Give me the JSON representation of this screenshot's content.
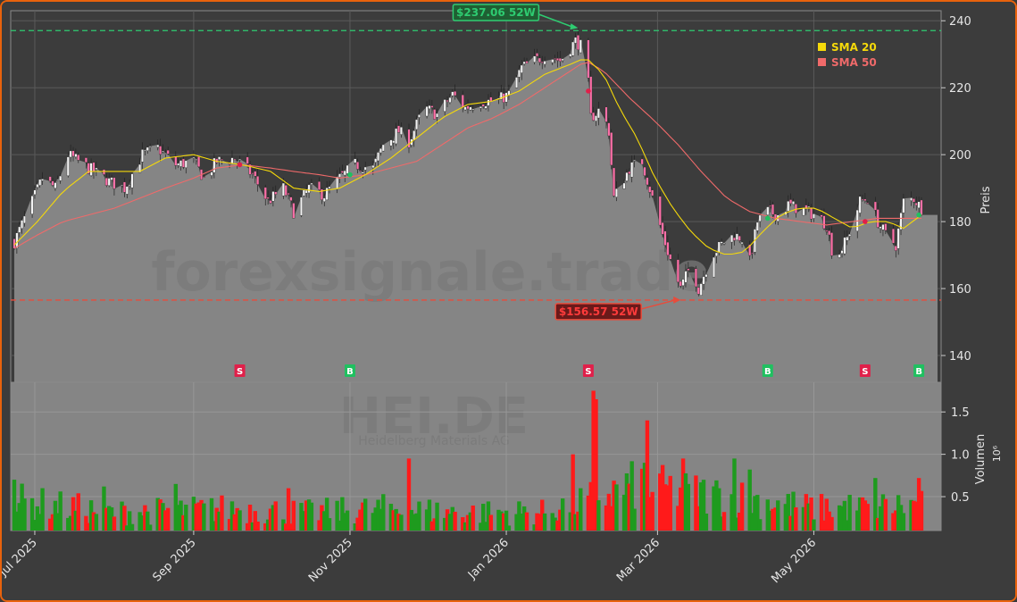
{
  "chart_data": {
    "type": "candlestick",
    "ticker": "HEI.DE",
    "subtitle": "Heidelberg Materials AG",
    "watermark": "forexsignale.trade",
    "x_labels": [
      "Jul 2025",
      "Sep 2025",
      "Nov 2025",
      "Jan 2026",
      "Mar 2026",
      "May 2026"
    ],
    "x_label_dates": [
      "2025-07-01",
      "2025-09-01",
      "2025-11-01",
      "2026-01-01",
      "2026-03-01",
      "2026-05-01"
    ],
    "date_range": [
      "2025-06-23",
      "2026-06-12"
    ],
    "price_axis": {
      "label": "Preis",
      "ylim": [
        132,
        243
      ],
      "ticks": [
        140,
        160,
        180,
        200,
        220,
        240
      ]
    },
    "volume_axis": {
      "label": "Volumen",
      "multiplier": "10⁶",
      "ylim": [
        0.1,
        1.85
      ],
      "ticks": [
        0.5,
        1.0,
        1.5
      ],
      "tick_labels": [
        "0.5",
        "1.0",
        "1.5"
      ]
    },
    "legend": {
      "position": "top-right",
      "items": [
        {
          "label": "SMA 20",
          "color": "#f5d90a"
        },
        {
          "label": "SMA 50",
          "color": "#f06a6a"
        }
      ]
    },
    "high_52w": {
      "value": 237.06,
      "label": "$237.06 52W",
      "date": "2026-01-29",
      "color": "#2ecc71"
    },
    "low_52w": {
      "value": 156.57,
      "label": "$156.57 52W",
      "date": "2026-03-10",
      "color": "#e74c3c"
    },
    "signals": [
      {
        "date": "2025-09-19",
        "type": "S",
        "price": 197
      },
      {
        "date": "2025-11-01",
        "type": "B",
        "price": 194
      },
      {
        "date": "2026-02-02",
        "type": "S",
        "price": 219
      },
      {
        "date": "2026-04-13",
        "type": "B",
        "price": 181
      },
      {
        "date": "2026-05-21",
        "type": "S",
        "price": 180
      },
      {
        "date": "2026-06-11",
        "type": "B",
        "price": 182
      }
    ],
    "price_anchors": [
      [
        "2025-06-23",
        174
      ],
      [
        "2025-06-30",
        186
      ],
      [
        "2025-07-04",
        193
      ],
      [
        "2025-07-09",
        190
      ],
      [
        "2025-07-14",
        200
      ],
      [
        "2025-07-18",
        198
      ],
      [
        "2025-07-24",
        195
      ],
      [
        "2025-07-30",
        192
      ],
      [
        "2025-08-05",
        190
      ],
      [
        "2025-08-12",
        200
      ],
      [
        "2025-08-18",
        202
      ],
      [
        "2025-08-25",
        197
      ],
      [
        "2025-09-01",
        198
      ],
      [
        "2025-09-05",
        193
      ],
      [
        "2025-09-10",
        198
      ],
      [
        "2025-09-17",
        199
      ],
      [
        "2025-09-24",
        194
      ],
      [
        "2025-09-30",
        186
      ],
      [
        "2025-10-06",
        190
      ],
      [
        "2025-10-10",
        183
      ],
      [
        "2025-10-16",
        190
      ],
      [
        "2025-10-22",
        188
      ],
      [
        "2025-10-28",
        193
      ],
      [
        "2025-11-03",
        197
      ],
      [
        "2025-11-10",
        196
      ],
      [
        "2025-11-14",
        203
      ],
      [
        "2025-11-20",
        207
      ],
      [
        "2025-11-24",
        204
      ],
      [
        "2025-11-30",
        214
      ],
      [
        "2025-12-05",
        212
      ],
      [
        "2025-12-11",
        218
      ],
      [
        "2025-12-16",
        214
      ],
      [
        "2025-12-22",
        216
      ],
      [
        "2025-12-28",
        216
      ],
      [
        "2026-01-02",
        218
      ],
      [
        "2026-01-07",
        226
      ],
      [
        "2026-01-12",
        228
      ],
      [
        "2026-01-17",
        230
      ],
      [
        "2026-01-22",
        228
      ],
      [
        "2026-01-28",
        234
      ],
      [
        "2026-02-01",
        231
      ],
      [
        "2026-02-03",
        211
      ],
      [
        "2026-02-07",
        214
      ],
      [
        "2026-02-10",
        207
      ],
      [
        "2026-02-12",
        187
      ],
      [
        "2026-02-18",
        196
      ],
      [
        "2026-02-23",
        198
      ],
      [
        "2026-02-27",
        187
      ],
      [
        "2026-03-03",
        176
      ],
      [
        "2026-03-07",
        166
      ],
      [
        "2026-03-10",
        160
      ],
      [
        "2026-03-14",
        167
      ],
      [
        "2026-03-17",
        160
      ],
      [
        "2026-03-22",
        170
      ],
      [
        "2026-03-27",
        174
      ],
      [
        "2026-03-31",
        176
      ],
      [
        "2026-04-03",
        175
      ],
      [
        "2026-04-06",
        168
      ],
      [
        "2026-04-09",
        180
      ],
      [
        "2026-04-13",
        183
      ],
      [
        "2026-04-17",
        182
      ],
      [
        "2026-04-21",
        185
      ],
      [
        "2026-04-28",
        183
      ],
      [
        "2026-05-02",
        182
      ],
      [
        "2026-05-06",
        179
      ],
      [
        "2026-05-09",
        168
      ],
      [
        "2026-05-14",
        175
      ],
      [
        "2026-05-19",
        186
      ],
      [
        "2026-05-22",
        187
      ],
      [
        "2026-05-26",
        180
      ],
      [
        "2026-05-29",
        176
      ],
      [
        "2026-06-02",
        173
      ],
      [
        "2026-06-05",
        186
      ],
      [
        "2026-06-09",
        187
      ],
      [
        "2026-06-12",
        184
      ]
    ],
    "sma20_anchors": [
      [
        "2025-06-23",
        173
      ],
      [
        "2025-07-02",
        180
      ],
      [
        "2025-07-12",
        189
      ],
      [
        "2025-07-22",
        195
      ],
      [
        "2025-08-01",
        195
      ],
      [
        "2025-08-11",
        195
      ],
      [
        "2025-08-21",
        199
      ],
      [
        "2025-09-01",
        200
      ],
      [
        "2025-09-10",
        198
      ],
      [
        "2025-09-20",
        197
      ],
      [
        "2025-10-01",
        195
      ],
      [
        "2025-10-10",
        190
      ],
      [
        "2025-10-20",
        189
      ],
      [
        "2025-10-28",
        190
      ],
      [
        "2025-11-07",
        194
      ],
      [
        "2025-11-17",
        199
      ],
      [
        "2025-11-27",
        205
      ],
      [
        "2025-12-07",
        211
      ],
      [
        "2025-12-17",
        215
      ],
      [
        "2025-12-27",
        216
      ],
      [
        "2026-01-06",
        219
      ],
      [
        "2026-01-16",
        224
      ],
      [
        "2026-01-26",
        227
      ],
      [
        "2026-02-01",
        229
      ],
      [
        "2026-02-08",
        224
      ],
      [
        "2026-02-14",
        214
      ],
      [
        "2026-02-21",
        205
      ],
      [
        "2026-02-28",
        193
      ],
      [
        "2026-03-07",
        184
      ],
      [
        "2026-03-14",
        177
      ],
      [
        "2026-03-21",
        172
      ],
      [
        "2026-03-28",
        170
      ],
      [
        "2026-04-04",
        171
      ],
      [
        "2026-04-11",
        177
      ],
      [
        "2026-04-18",
        182
      ],
      [
        "2026-04-25",
        184
      ],
      [
        "2026-05-02",
        184
      ],
      [
        "2026-05-09",
        181
      ],
      [
        "2026-05-16",
        178
      ],
      [
        "2026-05-23",
        180
      ],
      [
        "2026-05-30",
        180
      ],
      [
        "2026-06-05",
        178
      ],
      [
        "2026-06-12",
        182
      ]
    ],
    "sma50_anchors": [
      [
        "2025-06-23",
        172
      ],
      [
        "2025-07-02",
        176
      ],
      [
        "2025-07-12",
        180
      ],
      [
        "2025-07-22",
        182
      ],
      [
        "2025-08-01",
        184
      ],
      [
        "2025-08-11",
        187
      ],
      [
        "2025-08-21",
        190
      ],
      [
        "2025-09-01",
        193
      ],
      [
        "2025-09-10",
        196
      ],
      [
        "2025-09-20",
        197
      ],
      [
        "2025-10-01",
        196
      ],
      [
        "2025-10-10",
        195
      ],
      [
        "2025-10-20",
        194
      ],
      [
        "2025-10-28",
        193
      ],
      [
        "2025-11-07",
        194
      ],
      [
        "2025-11-17",
        196
      ],
      [
        "2025-11-27",
        198
      ],
      [
        "2025-12-07",
        203
      ],
      [
        "2025-12-17",
        208
      ],
      [
        "2025-12-27",
        211
      ],
      [
        "2026-01-06",
        215
      ],
      [
        "2026-01-16",
        220
      ],
      [
        "2026-01-26",
        225
      ],
      [
        "2026-02-01",
        228
      ],
      [
        "2026-02-08",
        225
      ],
      [
        "2026-02-18",
        217
      ],
      [
        "2026-02-28",
        210
      ],
      [
        "2026-03-09",
        203
      ],
      [
        "2026-03-18",
        195
      ],
      [
        "2026-03-28",
        187
      ],
      [
        "2026-04-06",
        183
      ],
      [
        "2026-04-16",
        181
      ],
      [
        "2026-04-26",
        180
      ],
      [
        "2026-05-06",
        179
      ],
      [
        "2026-05-16",
        180
      ],
      [
        "2026-05-26",
        181
      ],
      [
        "2026-06-05",
        181
      ],
      [
        "2026-06-12",
        181
      ]
    ],
    "volume_anchors": [
      [
        "2025-06-23",
        0.5
      ],
      [
        "2025-08-01",
        0.35
      ],
      [
        "2025-09-15",
        0.4
      ],
      [
        "2025-10-15",
        0.35
      ],
      [
        "2025-11-15",
        0.4
      ],
      [
        "2025-12-15",
        0.35
      ],
      [
        "2026-01-15",
        0.35
      ],
      [
        "2026-02-01",
        0.5
      ],
      [
        "2026-02-20",
        0.7
      ],
      [
        "2026-03-15",
        0.6
      ],
      [
        "2026-04-01",
        0.55
      ],
      [
        "2026-05-01",
        0.4
      ],
      [
        "2026-06-12",
        0.45
      ]
    ],
    "volume_spikes": [
      [
        "2026-02-04",
        1.75,
        "down"
      ],
      [
        "2026-02-05",
        1.65,
        "down"
      ],
      [
        "2026-02-25",
        1.4,
        "down"
      ],
      [
        "2026-03-29",
        1.22,
        "down"
      ],
      [
        "2025-11-24",
        0.95,
        "down"
      ],
      [
        "2026-01-27",
        1.0,
        "down"
      ],
      [
        "2026-03-11",
        0.95,
        "down"
      ],
      [
        "2026-04-06",
        0.82,
        "up"
      ],
      [
        "2026-02-24",
        0.9,
        "up"
      ],
      [
        "2026-03-31",
        0.95,
        "up"
      ],
      [
        "2026-06-11",
        0.72,
        "down"
      ],
      [
        "2026-05-25",
        0.72,
        "up"
      ],
      [
        "2025-06-23",
        0.7,
        "up"
      ],
      [
        "2025-08-25",
        0.65,
        "up"
      ],
      [
        "2025-07-28",
        0.62,
        "up"
      ],
      [
        "2025-10-08",
        0.6,
        "down"
      ]
    ],
    "colors": {
      "background": "#3c3c3c",
      "plot_fill": "#858585",
      "up": "#1e9b1e",
      "down": "#ff1a1a",
      "sma20": "#f5d90a",
      "sma50": "#f06a6a",
      "frame": "#e8620c"
    }
  }
}
